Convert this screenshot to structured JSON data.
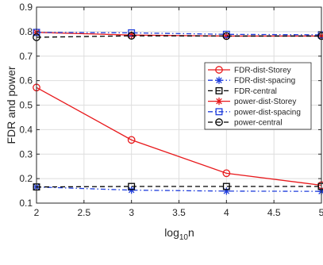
{
  "chart_data": {
    "type": "line",
    "title": "",
    "xlabel": {
      "base": "log",
      "sub": "10",
      "rest": "n"
    },
    "ylabel": "FDR and power",
    "xlim": [
      2,
      5
    ],
    "ylim": [
      0.1,
      0.9
    ],
    "x_ticks": [
      2,
      2.5,
      3,
      3.5,
      4,
      4.5,
      5
    ],
    "x_tick_labels": [
      "2",
      "2.5",
      "3",
      "3.5",
      "4",
      "4.5",
      "5"
    ],
    "y_ticks": [
      0.1,
      0.2,
      0.3,
      0.4,
      0.5,
      0.6,
      0.7,
      0.8,
      0.9
    ],
    "y_tick_labels": [
      "0.1",
      "0.2",
      "0.3",
      "0.4",
      "0.5",
      "0.6",
      "0.7",
      "0.8",
      "0.9"
    ],
    "grid": true,
    "legend_position": "right",
    "x": [
      2,
      3,
      4,
      5
    ],
    "series": [
      {
        "name": "FDR-dist-Storey",
        "values": [
          0.572,
          0.358,
          0.222,
          0.173
        ],
        "color": "#e8191c",
        "dash": "solid",
        "marker": "circle"
      },
      {
        "name": "FDR-dist-spacing",
        "values": [
          0.166,
          0.153,
          0.149,
          0.148
        ],
        "color": "#1f3ddc",
        "dash": "dashdot",
        "marker": "asterisk"
      },
      {
        "name": "FDR-central",
        "values": [
          0.166,
          0.168,
          0.168,
          0.168
        ],
        "color": "#000000",
        "dash": "dashed",
        "marker": "square"
      },
      {
        "name": "power-dist-Storey",
        "values": [
          0.797,
          0.786,
          0.782,
          0.782
        ],
        "color": "#e8191c",
        "dash": "solid",
        "marker": "asterisk"
      },
      {
        "name": "power-dist-spacing",
        "values": [
          0.797,
          0.795,
          0.789,
          0.787
        ],
        "color": "#1f3ddc",
        "dash": "dashdot",
        "marker": "square"
      },
      {
        "name": "power-central",
        "values": [
          0.777,
          0.783,
          0.782,
          0.782
        ],
        "color": "#000000",
        "dash": "dashed",
        "marker": "circle"
      }
    ]
  }
}
